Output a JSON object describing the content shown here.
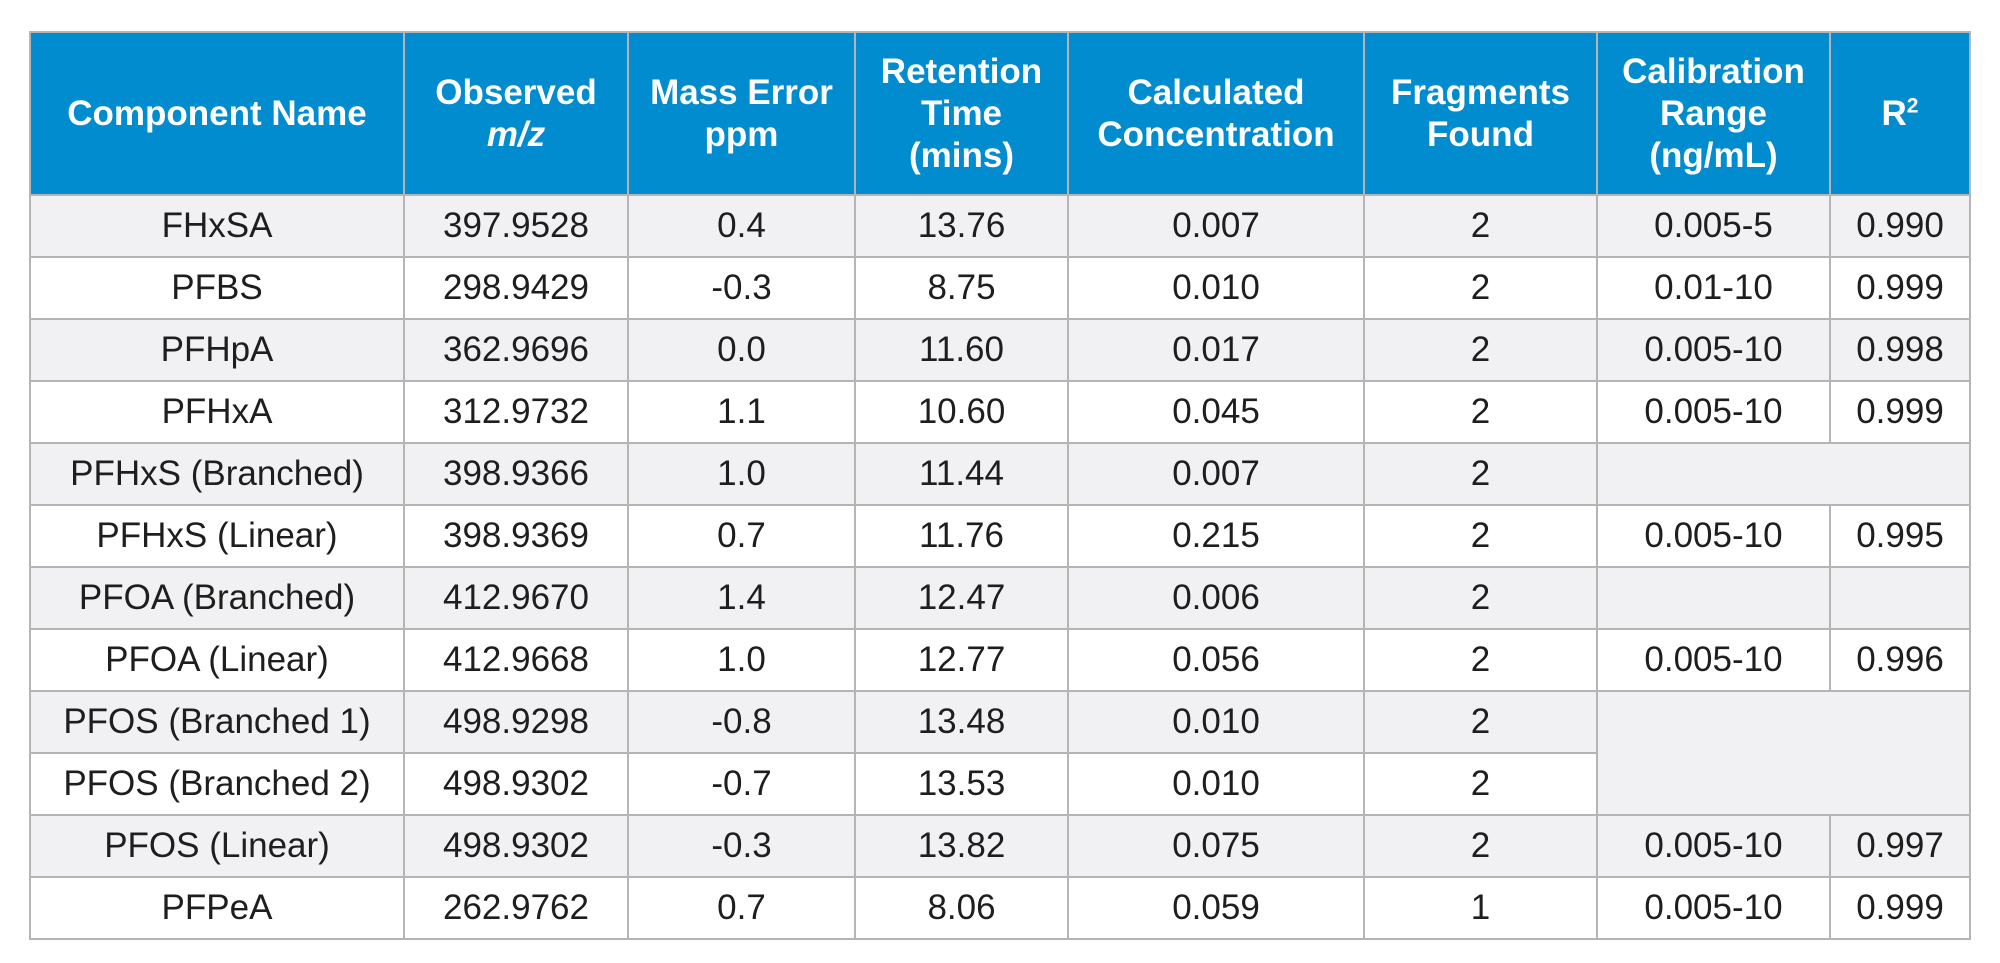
{
  "headers": {
    "component_name": "Component Name",
    "observed_1": "Observed",
    "observed_2": "m/z",
    "mass_error_1": "Mass Error",
    "mass_error_2": "ppm",
    "retention_1": "Retention",
    "retention_2": "Time",
    "retention_3": "(mins)",
    "calculated_1": "Calculated",
    "calculated_2": "Concentration",
    "fragments_1": "Fragments",
    "fragments_2": "Found",
    "calibration_1": "Calibration",
    "calibration_2": "Range",
    "calibration_3": "(ng/mL)",
    "r2_base": "R",
    "r2_sup": "2"
  },
  "rows": [
    {
      "name": "FHxSA",
      "mz": "397.9528",
      "ppm": "0.4",
      "rt": "13.76",
      "conc": "0.007",
      "frag": "2",
      "range": "0.005-5",
      "r2": "0.990"
    },
    {
      "name": "PFBS",
      "mz": "298.9429",
      "ppm": "-0.3",
      "rt": "8.75",
      "conc": "0.010",
      "frag": "2",
      "range": "0.01-10",
      "r2": "0.999"
    },
    {
      "name": "PFHpA",
      "mz": "362.9696",
      "ppm": "0.0",
      "rt": "11.60",
      "conc": "0.017",
      "frag": "2",
      "range": "0.005-10",
      "r2": "0.998"
    },
    {
      "name": "PFHxA",
      "mz": "312.9732",
      "ppm": "1.1",
      "rt": "10.60",
      "conc": "0.045",
      "frag": "2",
      "range": "0.005-10",
      "r2": "0.999"
    },
    {
      "name": "PFHxS (Branched)",
      "mz": "398.9366",
      "ppm": "1.0",
      "rt": "11.44",
      "conc": "0.007",
      "frag": "2"
    },
    {
      "name": "PFHxS (Linear)",
      "mz": "398.9369",
      "ppm": "0.7",
      "rt": "11.76",
      "conc": "0.215",
      "frag": "2",
      "range": "0.005-10",
      "r2": "0.995"
    },
    {
      "name": "PFOA (Branched)",
      "mz": "412.9670",
      "ppm": "1.4",
      "rt": "12.47",
      "conc": "0.006",
      "frag": "2"
    },
    {
      "name": "PFOA (Linear)",
      "mz": "412.9668",
      "ppm": "1.0",
      "rt": "12.77",
      "conc": "0.056",
      "frag": "2",
      "range": "0.005-10",
      "r2": "0.996"
    },
    {
      "name": "PFOS (Branched 1)",
      "mz": "498.9298",
      "ppm": "-0.8",
      "rt": "13.48",
      "conc": "0.010",
      "frag": "2"
    },
    {
      "name": "PFOS (Branched 2)",
      "mz": "498.9302",
      "ppm": "-0.7",
      "rt": "13.53",
      "conc": "0.010",
      "frag": "2"
    },
    {
      "name": "PFOS (Linear)",
      "mz": "498.9302",
      "ppm": "-0.3",
      "rt": "13.82",
      "conc": "0.075",
      "frag": "2",
      "range": "0.005-10",
      "r2": "0.997"
    },
    {
      "name": "PFPeA",
      "mz": "262.9762",
      "ppm": "0.7",
      "rt": "8.06",
      "conc": "0.059",
      "frag": "1",
      "range": "0.005-10",
      "r2": "0.999"
    }
  ],
  "colors": {
    "header_bg": "#008ccf",
    "header_text": "#ffffff",
    "row_alt_bg": "#f1f1f3",
    "border": "#b5b5b5"
  }
}
